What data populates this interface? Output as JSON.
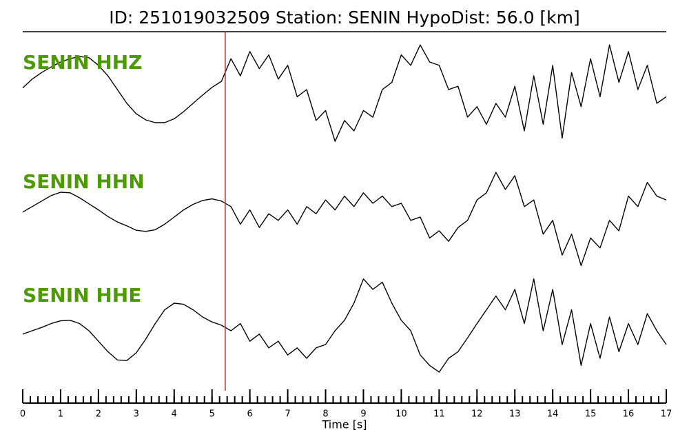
{
  "chart_data": {
    "type": "line",
    "title": "ID: 251019032509   Station: SENIN   HypoDist:    56.0 [km]",
    "xlabel": "Time [s]",
    "xlim": [
      0,
      17
    ],
    "xticks": [
      0,
      1,
      2,
      3,
      4,
      5,
      6,
      7,
      8,
      9,
      10,
      11,
      12,
      13,
      14,
      15,
      16,
      17
    ],
    "xminor_step": 0.2,
    "ylim": [
      -1,
      1
    ],
    "label_color": "#4e9a06",
    "marker_x": 5.35,
    "marker_color": "#e8232a",
    "x": [
      0,
      0.25,
      0.5,
      0.75,
      1,
      1.25,
      1.5,
      1.75,
      2,
      2.25,
      2.5,
      2.75,
      3,
      3.25,
      3.5,
      3.75,
      4,
      4.25,
      4.5,
      4.75,
      5,
      5.25,
      5.5,
      5.75,
      6,
      6.25,
      6.5,
      6.75,
      7,
      7.25,
      7.5,
      7.75,
      8,
      8.25,
      8.5,
      8.75,
      9,
      9.25,
      9.5,
      9.75,
      10,
      10.25,
      10.5,
      10.75,
      11,
      11.25,
      11.5,
      11.75,
      12,
      12.25,
      12.5,
      12.75,
      13,
      13.25,
      13.5,
      13.75,
      14,
      14.25,
      14.5,
      14.75,
      15,
      15.25,
      15.5,
      15.75,
      16,
      16.25,
      16.5,
      16.75,
      17
    ],
    "series": [
      {
        "name": "SENIN HHZ",
        "color": "#000000",
        "values": [
          0.03,
          0.19,
          0.31,
          0.41,
          0.5,
          0.56,
          0.6,
          0.58,
          0.44,
          0.25,
          0,
          -0.25,
          -0.44,
          -0.55,
          -0.6,
          -0.6,
          -0.53,
          -0.4,
          -0.25,
          -0.1,
          0.04,
          0.15,
          0.56,
          0.25,
          0.69,
          0.38,
          0.63,
          0.19,
          0.44,
          -0.13,
          0,
          -0.56,
          -0.38,
          -0.94,
          -0.56,
          -0.75,
          -0.38,
          -0.5,
          0,
          0.13,
          0.63,
          0.44,
          0.81,
          0.5,
          0.44,
          0,
          0.06,
          -0.5,
          -0.31,
          -0.63,
          -0.25,
          -0.5,
          0.06,
          -0.75,
          0.25,
          -0.63,
          0.44,
          -0.88,
          0.31,
          -0.31,
          0.56,
          -0.13,
          0.81,
          0.13,
          0.69,
          0,
          0.44,
          -0.25,
          -0.13
        ]
      },
      {
        "name": "SENIN HHN",
        "color": "#000000",
        "values": [
          0.09,
          0.19,
          0.29,
          0.39,
          0.45,
          0.44,
          0.35,
          0.24,
          0.13,
          0.01,
          -0.09,
          -0.16,
          -0.24,
          -0.26,
          -0.23,
          -0.13,
          0,
          0.13,
          0.23,
          0.3,
          0.33,
          0.29,
          0.19,
          -0.13,
          0.13,
          -0.19,
          0.06,
          -0.06,
          0.13,
          -0.13,
          0.19,
          0.06,
          0.31,
          0.13,
          0.38,
          0.19,
          0.44,
          0.25,
          0.38,
          0.19,
          0.25,
          -0.06,
          0,
          -0.38,
          -0.25,
          -0.44,
          -0.19,
          -0.06,
          0.31,
          0.44,
          0.81,
          0.5,
          0.75,
          0.19,
          0.31,
          -0.31,
          -0.06,
          -0.69,
          -0.31,
          -0.88,
          -0.38,
          -0.56,
          -0.06,
          -0.25,
          0.38,
          0.19,
          0.63,
          0.38,
          0.31
        ]
      },
      {
        "name": "SENIN HHE",
        "color": "#000000",
        "values": [
          -0.06,
          0,
          0.06,
          0.13,
          0.18,
          0.19,
          0.13,
          0,
          -0.19,
          -0.38,
          -0.53,
          -0.54,
          -0.4,
          -0.15,
          0.13,
          0.38,
          0.5,
          0.48,
          0.38,
          0.25,
          0.16,
          0.1,
          0,
          0.13,
          -0.19,
          -0.06,
          -0.31,
          -0.19,
          -0.44,
          -0.31,
          -0.5,
          -0.31,
          -0.25,
          0,
          0.19,
          0.5,
          0.94,
          0.75,
          0.88,
          0.5,
          0.19,
          0,
          -0.44,
          -0.63,
          -0.75,
          -0.5,
          -0.38,
          -0.13,
          0.13,
          0.38,
          0.63,
          0.38,
          0.75,
          0.13,
          0.94,
          0,
          0.75,
          -0.25,
          0.38,
          -0.63,
          0.13,
          -0.5,
          0.25,
          -0.38,
          0.13,
          -0.25,
          0.31,
          0,
          -0.25
        ]
      }
    ]
  }
}
